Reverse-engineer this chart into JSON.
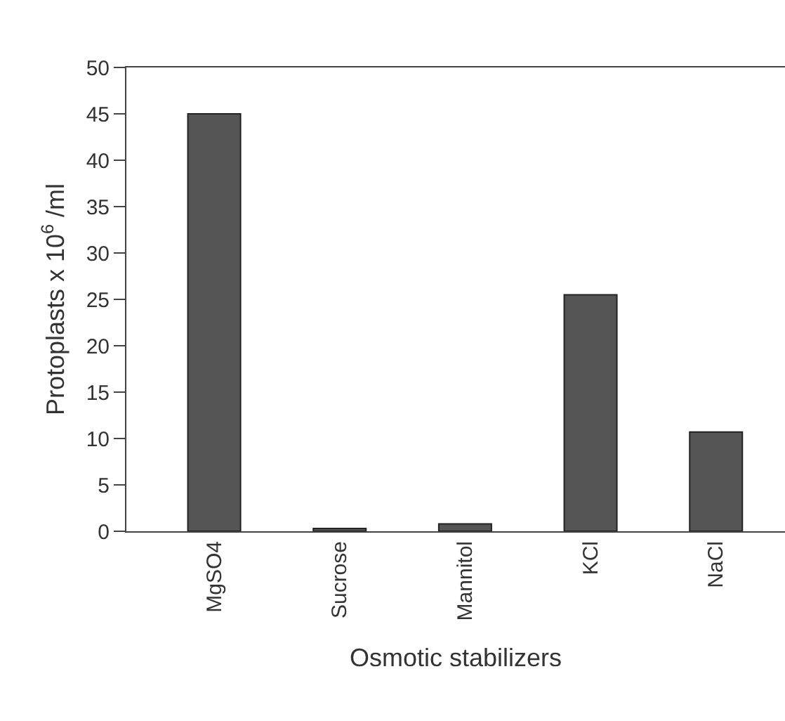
{
  "chart_data": {
    "type": "bar",
    "xlabel": "Osmotic stabilizers",
    "ylabel": "Protoplasts x 10$^{6}$ /ml",
    "categories": [
      "MgSO4",
      "Sucrose",
      "Mannitol",
      "KCl",
      "NaCl"
    ],
    "values": [
      45,
      0.3,
      0.8,
      25.5,
      10.7
    ],
    "color": "#555555",
    "ylim": [
      0,
      50
    ],
    "yticks": [
      0,
      5,
      10,
      15,
      20,
      25,
      30,
      35,
      40,
      45,
      50
    ]
  }
}
